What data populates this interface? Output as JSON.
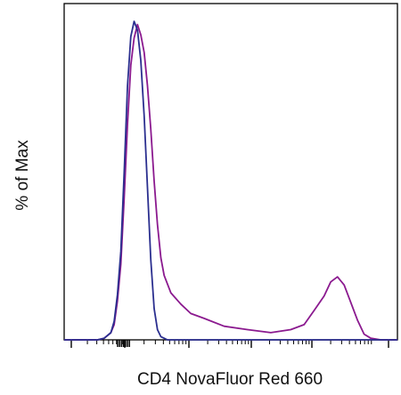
{
  "chart_data": {
    "type": "line",
    "title": "",
    "xlabel": "CD4 NovaFluor Red 660",
    "ylabel": "% of Max",
    "xscale": "log",
    "tick_labels": "none",
    "legend": "none",
    "grid": false,
    "xlim": [
      0,
      100
    ],
    "ylim": [
      0,
      100
    ],
    "series": [
      {
        "color": "#2b2f8f",
        "x": [
          0,
          10,
          12,
          14,
          15,
          16,
          17,
          18,
          19,
          20,
          21,
          22,
          23,
          24,
          25,
          26,
          27,
          28,
          29,
          30,
          31,
          40,
          100
        ],
        "y": [
          0,
          0,
          0.5,
          2,
          6,
          14,
          28,
          52,
          80,
          95,
          100,
          97,
          88,
          70,
          48,
          25,
          10,
          3,
          1,
          0.5,
          0,
          0,
          0
        ]
      },
      {
        "color": "#8b1a8f",
        "x": [
          0,
          10,
          12,
          14,
          15,
          16,
          17,
          18,
          19,
          20,
          21,
          22,
          23,
          24,
          25,
          26,
          27,
          28,
          29,
          30,
          32,
          35,
          38,
          42,
          48,
          55,
          62,
          68,
          72,
          75,
          78,
          80,
          82,
          84,
          86,
          88,
          90,
          92,
          95,
          100
        ],
        "y": [
          0,
          0,
          0.5,
          2,
          5,
          12,
          24,
          44,
          68,
          86,
          95,
          99,
          96,
          90,
          80,
          66,
          50,
          36,
          26,
          20,
          15,
          11,
          8.5,
          6.5,
          4.5,
          3,
          2.5,
          3,
          5,
          9,
          14,
          18,
          20,
          17,
          12,
          6,
          2,
          0.5,
          0,
          0
        ]
      }
    ]
  }
}
